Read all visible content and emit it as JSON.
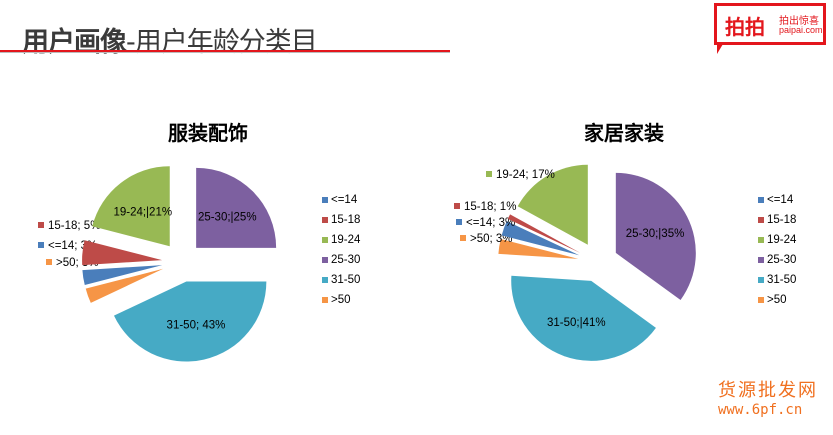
{
  "header": {
    "title_bold": "用户画像",
    "title_rest": "-用户年龄分类目",
    "logo_main": "拍拍",
    "logo_sub1": "拍出惊喜",
    "logo_sub2": "paipai.com"
  },
  "watermark": {
    "line1": "货源批发网",
    "line2": "www.6pf.cn"
  },
  "colors": {
    "<=14": "#4a7ebb",
    "15-18": "#be4b48",
    "19-24": "#98b954",
    "25-30": "#7d60a0",
    "31-50": "#46aac5",
    "&gt;50": "#f69546"
  },
  "chart_data": [
    {
      "type": "pie",
      "title": "服装配饰",
      "order": [
        "25-30",
        "31-50",
        ">50",
        "<=14",
        "15-18",
        "19-24"
      ],
      "labels": [
        "<=14",
        "15-18",
        "19-24",
        "25-30",
        "31-50",
        ">50"
      ],
      "values": [
        3,
        5,
        21,
        25,
        43,
        3
      ],
      "data_labels": {
        "<=14": "<=14; 3%",
        "15-18": "15-18; 5%",
        "19-24": "19-24;|21%",
        "25-30": "25-30;|25%",
        "31-50": "31-50; 43%",
        ">50": ">50; 3%"
      },
      "legend": [
        "<=14",
        "15-18",
        "19-24",
        "25-30",
        "31-50",
        ">50"
      ],
      "legend_position": "right"
    },
    {
      "type": "pie",
      "title": "家居家装",
      "order": [
        "25-30",
        "31-50",
        ">50",
        "<=14",
        "15-18",
        "19-24"
      ],
      "labels": [
        "<=14",
        "15-18",
        "19-24",
        "25-30",
        "31-50",
        ">50"
      ],
      "values": [
        3,
        1,
        17,
        35,
        41,
        3
      ],
      "data_labels": {
        "<=14": "<=14; 3%",
        "15-18": "15-18; 1%",
        "19-24": "19-24; 17%",
        "25-30": "25-30;|35%",
        "31-50": "31-50;|41%",
        ">50": ">50; 3%"
      },
      "legend": [
        "<=14",
        "15-18",
        "19-24",
        "25-30",
        "31-50",
        ">50"
      ],
      "legend_position": "right"
    }
  ]
}
